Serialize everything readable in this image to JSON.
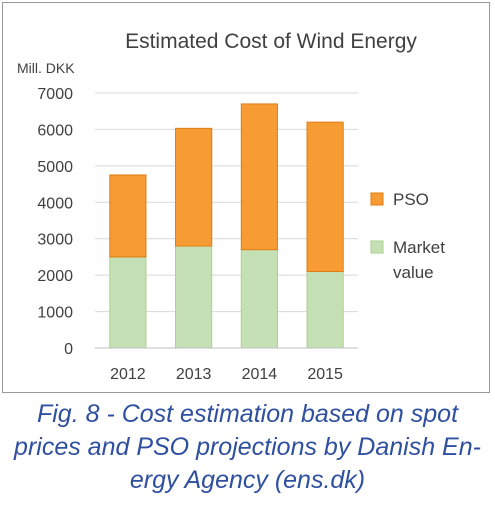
{
  "chart_data": {
    "type": "bar",
    "stacked": true,
    "title": "Estimated Cost of Wind Energy",
    "ylabel": "Mill. DKK",
    "xlabel": "",
    "categories": [
      "2012",
      "2013",
      "2014",
      "2015"
    ],
    "ylim": [
      0,
      7000
    ],
    "yticks": [
      0,
      1000,
      2000,
      3000,
      4000,
      5000,
      6000,
      7000
    ],
    "grid": true,
    "legend_position": "right",
    "series": [
      {
        "name": "Market value",
        "color": "#c5e0b4",
        "edge": "#a9d18e",
        "values": [
          2500,
          2800,
          2700,
          2100
        ]
      },
      {
        "name": "PSO",
        "color": "#f79c35",
        "edge": "#e07c10",
        "values": [
          2250,
          3230,
          4000,
          4100
        ]
      }
    ],
    "legend_order": [
      "PSO",
      "Market value"
    ]
  },
  "legend_labels": {
    "pso": "PSO",
    "market_line1": "Market",
    "market_line2": "value"
  },
  "caption": "Fig. 8 - Cost estimation based on spot prices and PSO projections by Danish Energy Agency (ens.dk)",
  "caption_lines": [
    "Fig. 8 - Cost estimation based on spot",
    "prices and PSO projections by Danish En-",
    "ergy Agency (ens.dk)"
  ]
}
